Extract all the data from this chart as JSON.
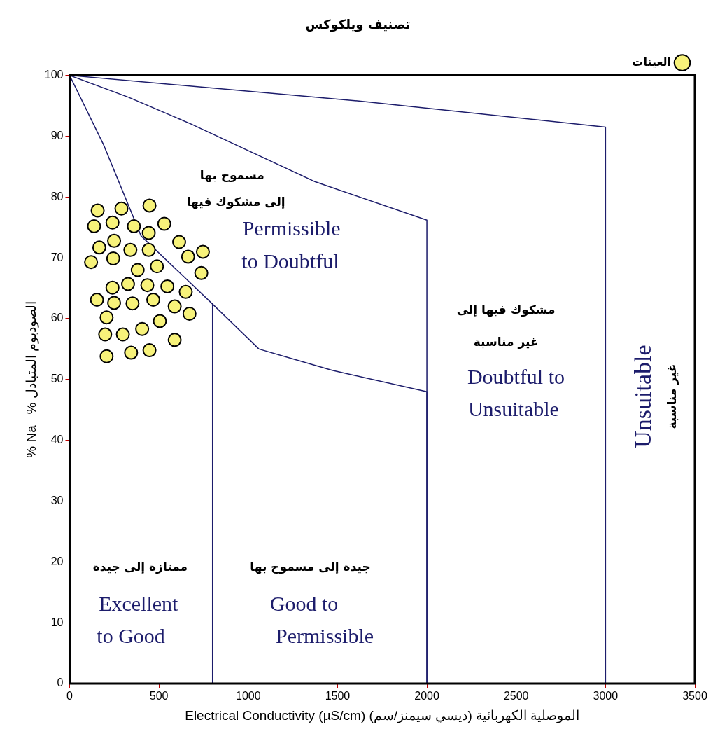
{
  "chart_data": {
    "type": "scatter",
    "title": "تصنيف ويلكوكس",
    "xlabel": "Electrical Conductivity (µS/cm) (ديسي سيمنز/سم) الموصلية الكهربائية",
    "ylabel": "% Na   % الصوديوم المتبادل",
    "xlim": [
      0,
      3500
    ],
    "ylim": [
      0,
      100
    ],
    "xticks": [
      0,
      500,
      1000,
      1500,
      2000,
      2500,
      3000,
      3500
    ],
    "yticks": [
      0,
      10,
      20,
      30,
      40,
      50,
      60,
      70,
      80,
      90,
      100
    ],
    "grid": false,
    "legend": "top right",
    "marker": "circle",
    "series": [
      {
        "name": "العينات",
        "type": "scatter",
        "color": "#f7f27a",
        "x": [
          157,
          290,
          447,
          137,
          240,
          360,
          443,
          530,
          166,
          249,
          340,
          443,
          613,
          120,
          244,
          381,
          489,
          663,
          746,
          737,
          240,
          327,
          435,
          547,
          650,
          153,
          249,
          352,
          468,
          588,
          671,
          207,
          505,
          199,
          298,
          406,
          588,
          207,
          344,
          447
        ],
        "values": [
          77.8,
          78.1,
          78.6,
          75.2,
          75.8,
          75.2,
          74.1,
          75.6,
          71.7,
          72.8,
          71.3,
          71.3,
          72.6,
          69.3,
          69.9,
          68.0,
          68.6,
          70.2,
          71.0,
          67.5,
          65.1,
          65.7,
          65.5,
          65.3,
          64.4,
          63.1,
          62.6,
          62.5,
          63.1,
          62.0,
          60.8,
          60.2,
          59.6,
          57.4,
          57.4,
          58.3,
          56.5,
          53.8,
          54.4,
          54.8
        ]
      },
      {
        "type": "line",
        "marker": "none",
        "color": "#1c1c6b",
        "x": [
          0,
          1611,
          3000,
          3000
        ],
        "values": [
          100,
          95.8,
          91.5,
          0
        ]
      },
      {
        "type": "line",
        "marker": "none",
        "color": "#1c1c6b",
        "x": [
          0,
          330,
          680,
          1375,
          2000,
          2000
        ],
        "values": [
          100,
          96.4,
          92,
          82.5,
          76.2,
          0
        ]
      },
      {
        "type": "line",
        "marker": "none",
        "color": "#1c1c6b",
        "x": [
          0,
          190,
          400,
          800,
          1060,
          1470,
          2000,
          2000
        ],
        "values": [
          100,
          88.6,
          73.6,
          62.4,
          55,
          51.5,
          48,
          0
        ]
      },
      {
        "type": "line",
        "marker": "none",
        "color": "#1c1c6b",
        "x": [
          800,
          800
        ],
        "values": [
          62.4,
          0
        ]
      }
    ],
    "annotations": [
      "مسموح بها",
      "إلى مشكوك فيها",
      "Permissible",
      "to Doubtful",
      "مشكوك فيها إلى",
      "غير مناسبة",
      "Doubtful to",
      "Unsuitable",
      "ممتازة إلى جيدة",
      "Excellent",
      "to Good",
      "جيدة إلى مسموح بها",
      "Good to",
      "Permissible",
      "Unsuitable",
      "غير مناسبة"
    ]
  }
}
